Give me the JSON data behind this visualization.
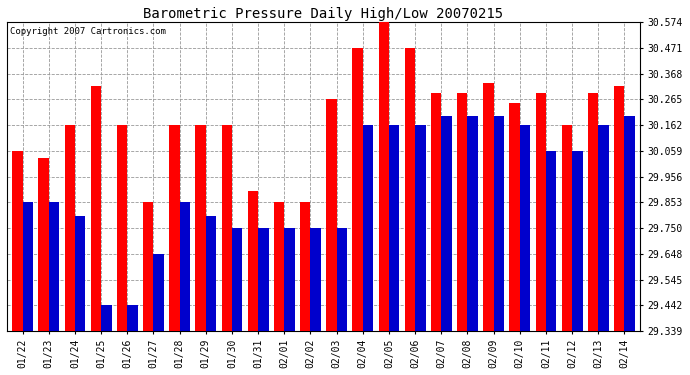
{
  "title": "Barometric Pressure Daily High/Low 20070215",
  "copyright": "Copyright 2007 Cartronics.com",
  "dates": [
    "01/22",
    "01/23",
    "01/24",
    "01/25",
    "01/26",
    "01/27",
    "01/28",
    "01/29",
    "01/30",
    "01/31",
    "02/01",
    "02/02",
    "02/03",
    "02/04",
    "02/05",
    "02/06",
    "02/07",
    "02/08",
    "02/09",
    "02/10",
    "02/11",
    "02/12",
    "02/13",
    "02/14"
  ],
  "highs": [
    30.059,
    30.03,
    30.162,
    30.32,
    30.162,
    29.853,
    30.162,
    30.162,
    30.162,
    29.9,
    29.853,
    29.853,
    30.265,
    30.471,
    30.574,
    30.471,
    30.29,
    30.29,
    30.33,
    30.25,
    30.29,
    30.162,
    30.29,
    30.32
  ],
  "lows": [
    29.853,
    29.853,
    29.8,
    29.442,
    29.442,
    29.648,
    29.853,
    29.8,
    29.75,
    29.75,
    29.75,
    29.75,
    29.75,
    30.162,
    30.162,
    30.162,
    30.2,
    30.2,
    30.2,
    30.162,
    30.059,
    30.059,
    30.162,
    30.2
  ],
  "ylim_min": 29.339,
  "ylim_max": 30.574,
  "yticks": [
    29.339,
    29.442,
    29.545,
    29.648,
    29.75,
    29.853,
    29.956,
    30.059,
    30.162,
    30.265,
    30.368,
    30.471,
    30.574
  ],
  "high_color": "#FF0000",
  "low_color": "#0000CC",
  "bg_color": "#FFFFFF",
  "plot_bg_color": "#FFFFFF",
  "grid_color": "#999999",
  "title_fontsize": 10,
  "copyright_fontsize": 6.5,
  "bar_width": 0.4
}
